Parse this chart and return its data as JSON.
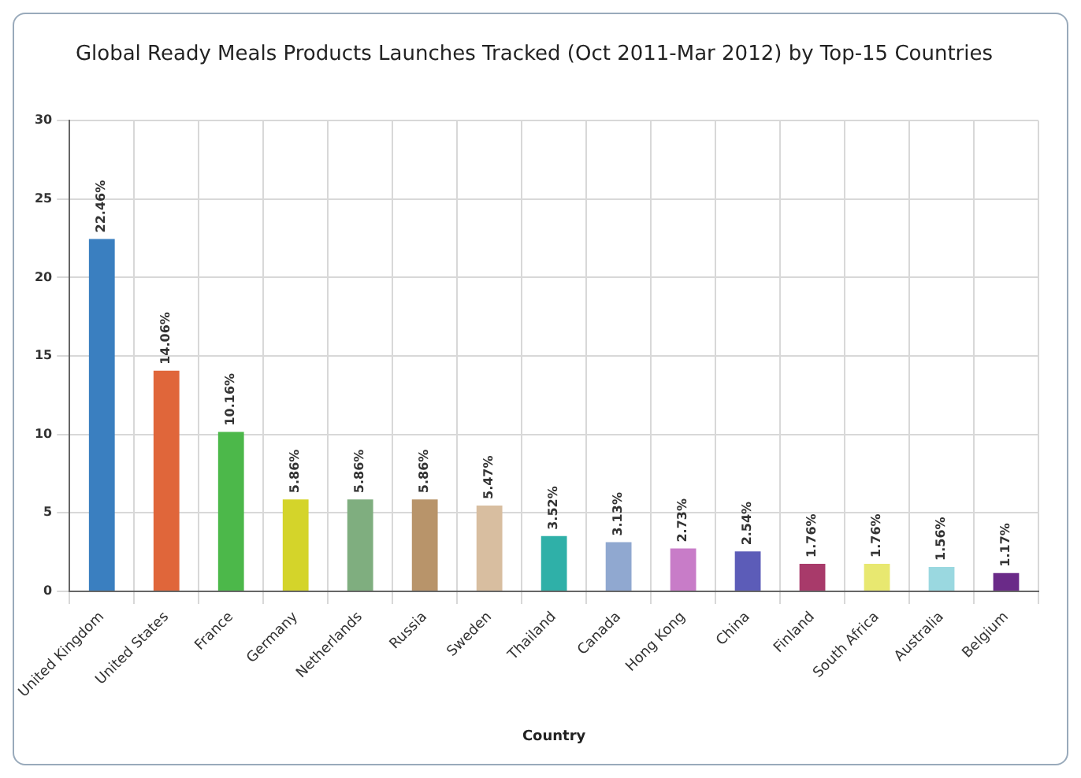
{
  "chart_data": {
    "type": "bar",
    "title": "Global Ready Meals Products Launches Tracked (Oct 2011-Mar 2012) by Top-15 Countries",
    "xlabel": "Country",
    "categories": [
      "United Kingdom",
      "United States",
      "France",
      "Germany",
      "Netherlands",
      "Russia",
      "Sweden",
      "Thailand",
      "Canada",
      "Hong Kong",
      "China",
      "Finland",
      "South Africa",
      "Australia",
      "Belgium"
    ],
    "values": [
      22.46,
      14.06,
      10.16,
      5.86,
      5.86,
      5.86,
      5.47,
      3.52,
      3.13,
      2.73,
      2.54,
      1.76,
      1.76,
      1.56,
      1.17
    ],
    "value_labels": [
      "22.46%",
      "14.06%",
      "10.16%",
      "5.86%",
      "5.86%",
      "5.86%",
      "5.47%",
      "3.52%",
      "3.13%",
      "2.73%",
      "2.54%",
      "1.76%",
      "1.76%",
      "1.56%",
      "1.17%"
    ],
    "colors": [
      "#3a7fc0",
      "#e0663a",
      "#4cb84a",
      "#d4d42a",
      "#7fae7f",
      "#b8946a",
      "#d8bea0",
      "#2fb0a8",
      "#90a8d0",
      "#c87cc8",
      "#5c5cb8",
      "#a83a6a",
      "#e8e870",
      "#9ad8e0",
      "#6a2a88"
    ],
    "ylim": [
      0,
      30
    ],
    "yticks": [
      0,
      5,
      10,
      15,
      20,
      25,
      30
    ],
    "grid": true,
    "legend": false
  }
}
